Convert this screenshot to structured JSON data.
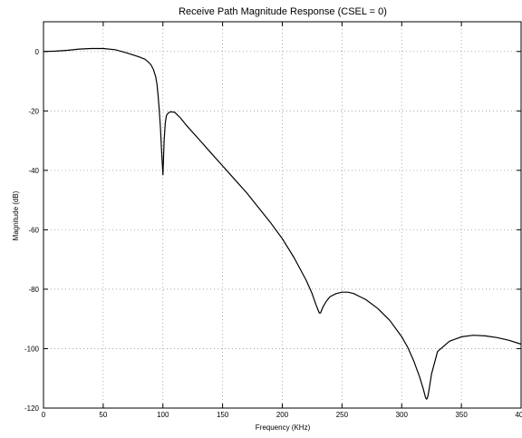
{
  "chart_data": {
    "type": "line",
    "title": "Receive Path Magnitude Response (CSEL = 0)",
    "xlabel": "Frequency (KHz)",
    "ylabel": "Magnitude (dB)",
    "xlim": [
      0,
      400
    ],
    "ylim": [
      -120,
      10
    ],
    "xticks": [
      0,
      50,
      100,
      150,
      200,
      250,
      300,
      350,
      400
    ],
    "yticks": [
      0,
      -20,
      -40,
      -60,
      -80,
      -100,
      -120
    ],
    "xtick_labels": [
      "0",
      "50",
      "100",
      "150",
      "200",
      "250",
      "300",
      "350",
      "400"
    ],
    "ytick_labels": [
      "0",
      "-20",
      "-40",
      "-60",
      "-80",
      "-100",
      "-120"
    ],
    "grid": true,
    "line_color": "#000000",
    "grid_color": "#9a9a9a",
    "series": [
      {
        "x": [
          0,
          10,
          20,
          30,
          40,
          50,
          60,
          70,
          80,
          85,
          88,
          90,
          92,
          94,
          95,
          96,
          97,
          98,
          99,
          100,
          101,
          102,
          103,
          105,
          107,
          110,
          115,
          120,
          130,
          140,
          150,
          160,
          170,
          180,
          190,
          200,
          210,
          220,
          225,
          228,
          230,
          231,
          232,
          234,
          237,
          240,
          245,
          250,
          255,
          260,
          265,
          270,
          280,
          290,
          300,
          305,
          310,
          315,
          318,
          320,
          321,
          322,
          323,
          325,
          330,
          340,
          350,
          360,
          370,
          380,
          390,
          400
        ],
        "y": [
          0,
          0.1,
          0.4,
          0.8,
          1.0,
          1.0,
          0.6,
          -0.5,
          -1.8,
          -2.6,
          -3.6,
          -4.5,
          -6.0,
          -8.5,
          -11,
          -15,
          -20,
          -26,
          -34,
          -41.5,
          -30,
          -24,
          -21.5,
          -20.5,
          -20.3,
          -20.5,
          -22.5,
          -25,
          -29.5,
          -34,
          -38.5,
          -43,
          -47.5,
          -52.5,
          -57.5,
          -63,
          -69.5,
          -77,
          -81.5,
          -85,
          -87,
          -88,
          -88,
          -86,
          -84,
          -82.5,
          -81.5,
          -81,
          -81,
          -81.5,
          -82.5,
          -83.5,
          -86.5,
          -90.5,
          -96,
          -99.5,
          -104,
          -109.5,
          -113.5,
          -116.5,
          -117,
          -116,
          -113.5,
          -108.5,
          -101,
          -97.5,
          -96,
          -95.5,
          -95.7,
          -96.3,
          -97.2,
          -98.5
        ]
      }
    ]
  }
}
